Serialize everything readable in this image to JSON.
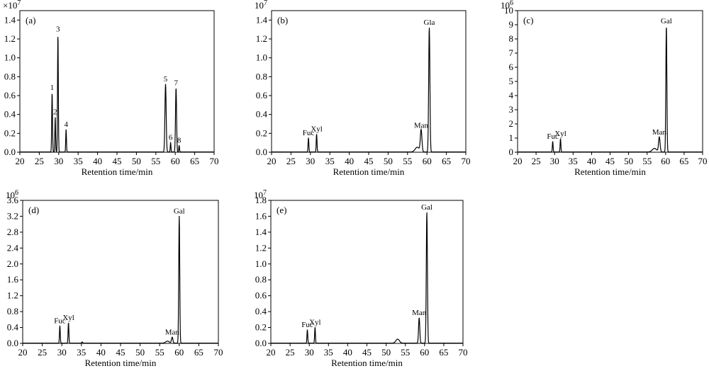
{
  "chart_data": [
    {
      "id": "a",
      "type": "line",
      "panel_label": "(a)",
      "xlabel": "Retention time/min",
      "y_scale_label": "×10",
      "y_scale_exp": "7",
      "xlim": [
        20,
        70
      ],
      "ylim": [
        0,
        1.5
      ],
      "x_ticks": [
        "20",
        "25",
        "30",
        "35",
        "40",
        "45",
        "50",
        "55",
        "60",
        "65",
        "70"
      ],
      "y_ticks": [
        "0.0",
        "0.2",
        "0.4",
        "0.6",
        "0.8",
        "1.0",
        "1.2",
        "1.4"
      ],
      "peaks": [
        {
          "label": "1",
          "x": 28.3,
          "y": 0.63,
          "w": 0.22
        },
        {
          "label": "2",
          "x": 29.1,
          "y": 0.37,
          "w": 0.2
        },
        {
          "label": "3",
          "x": 29.8,
          "y": 1.25,
          "w": 0.22
        },
        {
          "label": "4",
          "x": 31.9,
          "y": 0.24,
          "w": 0.2
        },
        {
          "label": "5",
          "x": 57.5,
          "y": 0.72,
          "w": 0.35
        },
        {
          "label": "6",
          "x": 58.8,
          "y": 0.1,
          "w": 0.2
        },
        {
          "label": "7",
          "x": 60.2,
          "y": 0.68,
          "w": 0.3
        },
        {
          "label": "8",
          "x": 61.0,
          "y": 0.07,
          "w": 0.2
        }
      ],
      "bumps": []
    },
    {
      "id": "b",
      "type": "line",
      "panel_label": "(b)",
      "xlabel": "Retention time/min",
      "y_scale_label": "10",
      "y_scale_exp": "7",
      "xlim": [
        20,
        70
      ],
      "ylim": [
        0,
        1.5
      ],
      "x_ticks": [
        "20",
        "25",
        "30",
        "35",
        "40",
        "45",
        "50",
        "55",
        "60",
        "65",
        "70"
      ],
      "y_ticks": [
        "0.0",
        "0.2",
        "0.4",
        "0.6",
        "0.8",
        "1.0",
        "1.2",
        "1.4"
      ],
      "peaks": [
        {
          "label": "Fuc",
          "x": 29.5,
          "y": 0.15,
          "w": 0.22
        },
        {
          "label": "Xyl",
          "x": 31.6,
          "y": 0.19,
          "w": 0.22
        },
        {
          "label": "Man",
          "x": 58.5,
          "y": 0.23,
          "w": 0.45
        },
        {
          "label": "Gla",
          "x": 60.6,
          "y": 1.32,
          "w": 0.35
        }
      ],
      "bumps": [
        {
          "x": 57.5,
          "y": 0.05,
          "w": 1.2
        }
      ]
    },
    {
      "id": "c",
      "type": "line",
      "panel_label": "(c)",
      "xlabel": "Retention time/min",
      "y_scale_label": "10",
      "y_scale_exp": "6",
      "xlim": [
        20,
        70
      ],
      "ylim": [
        0,
        10
      ],
      "x_ticks": [
        "20",
        "25",
        "30",
        "35",
        "40",
        "45",
        "50",
        "55",
        "60",
        "65",
        "70"
      ],
      "y_ticks": [
        "0",
        "1",
        "2",
        "3",
        "4",
        "5",
        "6",
        "7",
        "8",
        "9",
        "10"
      ],
      "peaks": [
        {
          "label": "Fuc",
          "x": 29.5,
          "y": 0.75,
          "w": 0.22
        },
        {
          "label": "Xyl",
          "x": 31.6,
          "y": 0.95,
          "w": 0.22
        },
        {
          "label": "Man",
          "x": 58.3,
          "y": 1.05,
          "w": 0.45
        },
        {
          "label": "Gal",
          "x": 60.2,
          "y": 8.9,
          "w": 0.3
        }
      ],
      "bumps": [
        {
          "x": 57.0,
          "y": 0.25,
          "w": 1.3
        }
      ]
    },
    {
      "id": "d",
      "type": "line",
      "panel_label": "(d)",
      "xlabel": "Retention time/min",
      "y_scale_label": "10",
      "y_scale_exp": "6",
      "xlim": [
        20,
        70
      ],
      "ylim": [
        0,
        3.6
      ],
      "x_ticks": [
        "20",
        "25",
        "30",
        "35",
        "40",
        "45",
        "50",
        "55",
        "60",
        "65",
        "70"
      ],
      "y_ticks": [
        "0.0",
        "0.4",
        "0.8",
        "1.2",
        "1.6",
        "2.0",
        "2.4",
        "2.8",
        "3.2",
        "3.6"
      ],
      "peaks": [
        {
          "label": "Fuc",
          "x": 29.5,
          "y": 0.44,
          "w": 0.22
        },
        {
          "label": "Xyl",
          "x": 31.7,
          "y": 0.52,
          "w": 0.22
        },
        {
          "label": "Man",
          "x": 58.2,
          "y": 0.15,
          "w": 0.4
        },
        {
          "label": "Gal",
          "x": 60.0,
          "y": 3.2,
          "w": 0.28
        }
      ],
      "bumps": [
        {
          "x": 35.2,
          "y": 0.03,
          "w": 0.25
        },
        {
          "x": 57.0,
          "y": 0.05,
          "w": 1.0
        }
      ]
    },
    {
      "id": "e",
      "type": "line",
      "panel_label": "(e)",
      "xlabel": "Retention time/min",
      "y_scale_label": "10",
      "y_scale_exp": "7",
      "xlim": [
        20,
        70
      ],
      "ylim": [
        0,
        1.8
      ],
      "x_ticks": [
        "20",
        "25",
        "30",
        "35",
        "40",
        "45",
        "50",
        "55",
        "60",
        "65",
        "70"
      ],
      "y_ticks": [
        "0.0",
        "0.2",
        "0.4",
        "0.6",
        "0.8",
        "1.0",
        "1.2",
        "1.4",
        "1.6",
        "1.8"
      ],
      "peaks": [
        {
          "label": "Fuc",
          "x": 29.5,
          "y": 0.17,
          "w": 0.22
        },
        {
          "label": "Xyl",
          "x": 31.5,
          "y": 0.2,
          "w": 0.22
        },
        {
          "label": "Man",
          "x": 58.6,
          "y": 0.32,
          "w": 0.35
        },
        {
          "label": "Gal",
          "x": 60.6,
          "y": 1.65,
          "w": 0.32
        }
      ],
      "bumps": [
        {
          "x": 53.0,
          "y": 0.05,
          "w": 1.0
        }
      ]
    }
  ]
}
